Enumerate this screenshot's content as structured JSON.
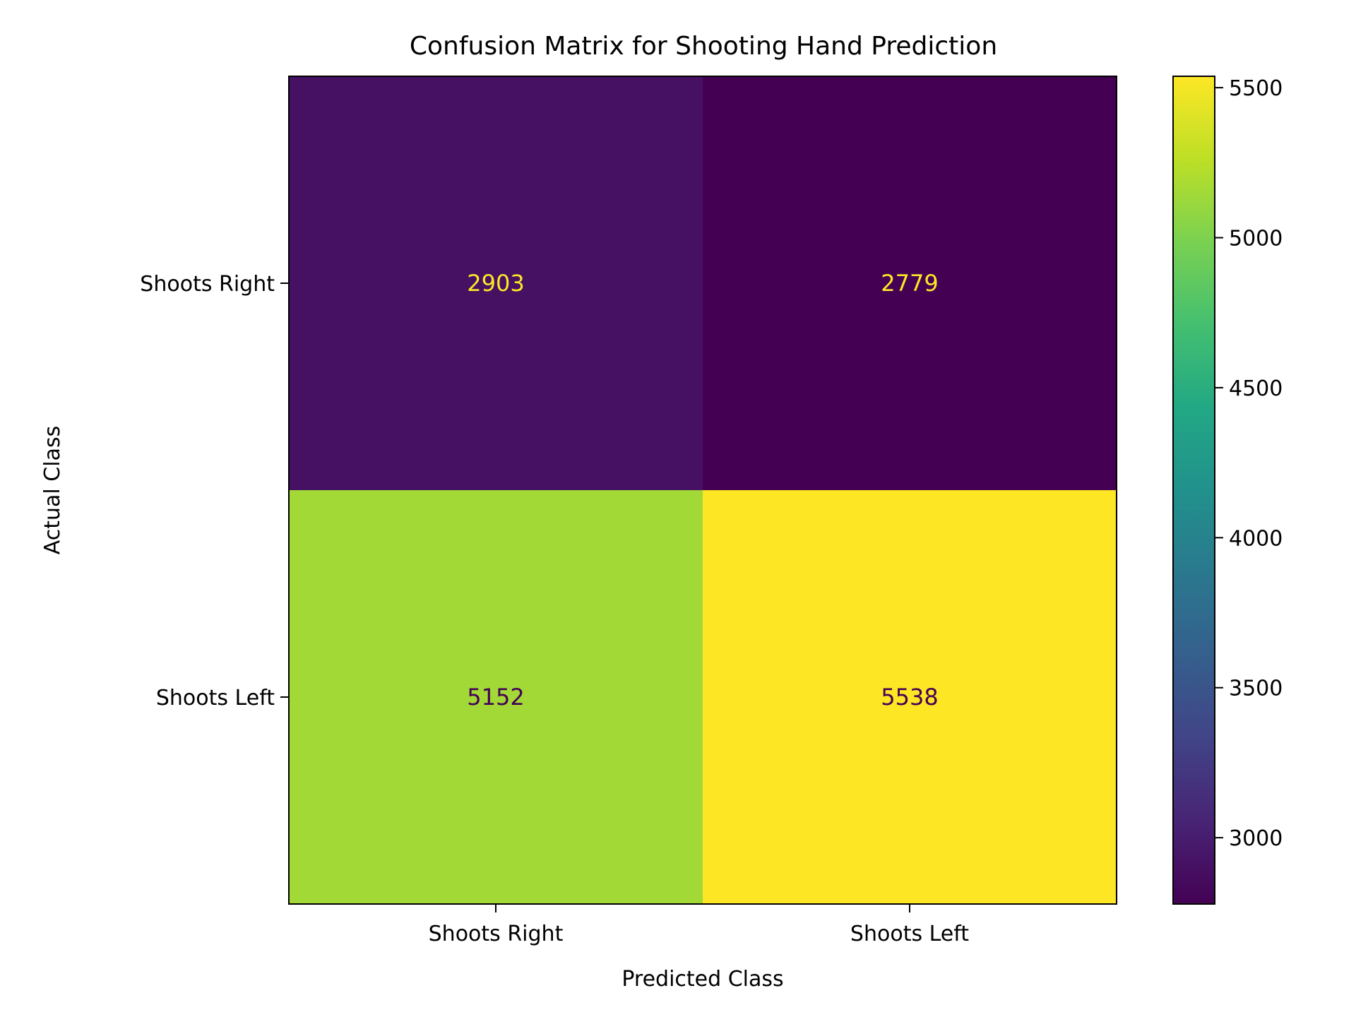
{
  "chart_data": {
    "type": "heatmap",
    "title": "Confusion Matrix for Shooting Hand Prediction",
    "xlabel": "Predicted Class",
    "ylabel": "Actual Class",
    "x_categories": [
      "Shoots Right",
      "Shoots Left"
    ],
    "y_categories": [
      "Shoots Right",
      "Shoots Left"
    ],
    "matrix": [
      [
        2903,
        2779
      ],
      [
        5152,
        5538
      ]
    ],
    "colormap": "viridis",
    "colorbar": {
      "vmin": 2779,
      "vmax": 5538,
      "ticks": [
        3000,
        3500,
        4000,
        4500,
        5000,
        5500
      ],
      "tick_labels": [
        "3000",
        "3500",
        "4000",
        "4500",
        "5000",
        "5500"
      ]
    },
    "cell_text_colors": {
      "on_dark": "#fde725",
      "on_light": "#440154"
    }
  }
}
